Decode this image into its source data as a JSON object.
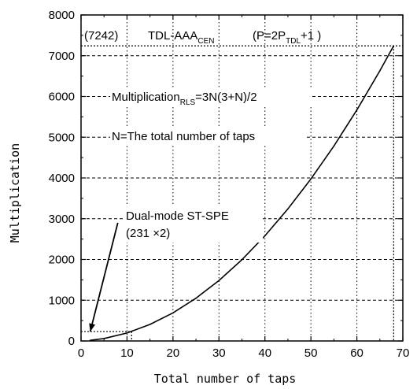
{
  "chart_data": {
    "type": "line",
    "title": "",
    "xlabel": "Total number of taps",
    "ylabel": "Multiplication",
    "xlim": [
      0,
      70
    ],
    "ylim": [
      0,
      8000
    ],
    "x_ticks": [
      "0",
      "10",
      "20",
      "30",
      "40",
      "50",
      "60",
      "70"
    ],
    "y_ticks": [
      "0",
      "1000",
      "2000",
      "3000",
      "4000",
      "5000",
      "6000",
      "7000",
      "8000"
    ],
    "grid": true,
    "grid_style": "dotted",
    "series": [
      {
        "x": [
          2,
          5,
          10,
          15,
          20,
          25,
          30,
          35,
          40,
          45,
          50,
          55,
          60,
          65,
          68
        ],
        "y": [
          15,
          60,
          195,
          405,
          690,
          1050,
          1485,
          1995,
          2580,
          3240,
          3975,
          4785,
          5670,
          6630,
          7242
        ],
        "color": "#000000"
      }
    ],
    "annotations": {
      "header_value": "(7242)",
      "header_name_main": "TDL-AAA",
      "header_name_sub": "CEN",
      "header_eq_pre": "(P=2P",
      "header_eq_sub": "TDL",
      "header_eq_post": "+1 )",
      "formula_main": "Multiplication",
      "formula_sub": "RLS",
      "formula_rest": "=3N(3+N)/2",
      "n_definition": "N=The total number of taps",
      "dual_mode_line1": "Dual-mode ST-SPE",
      "dual_mode_line2": "(231 ×2)"
    },
    "reference_lines": {
      "header_y": 7242,
      "header_x": 68,
      "dual_mode_y": 231,
      "dual_mode_x": 11
    },
    "arrow_target": [
      2,
      231
    ],
    "arrow_tail": [
      8,
      2900
    ]
  }
}
